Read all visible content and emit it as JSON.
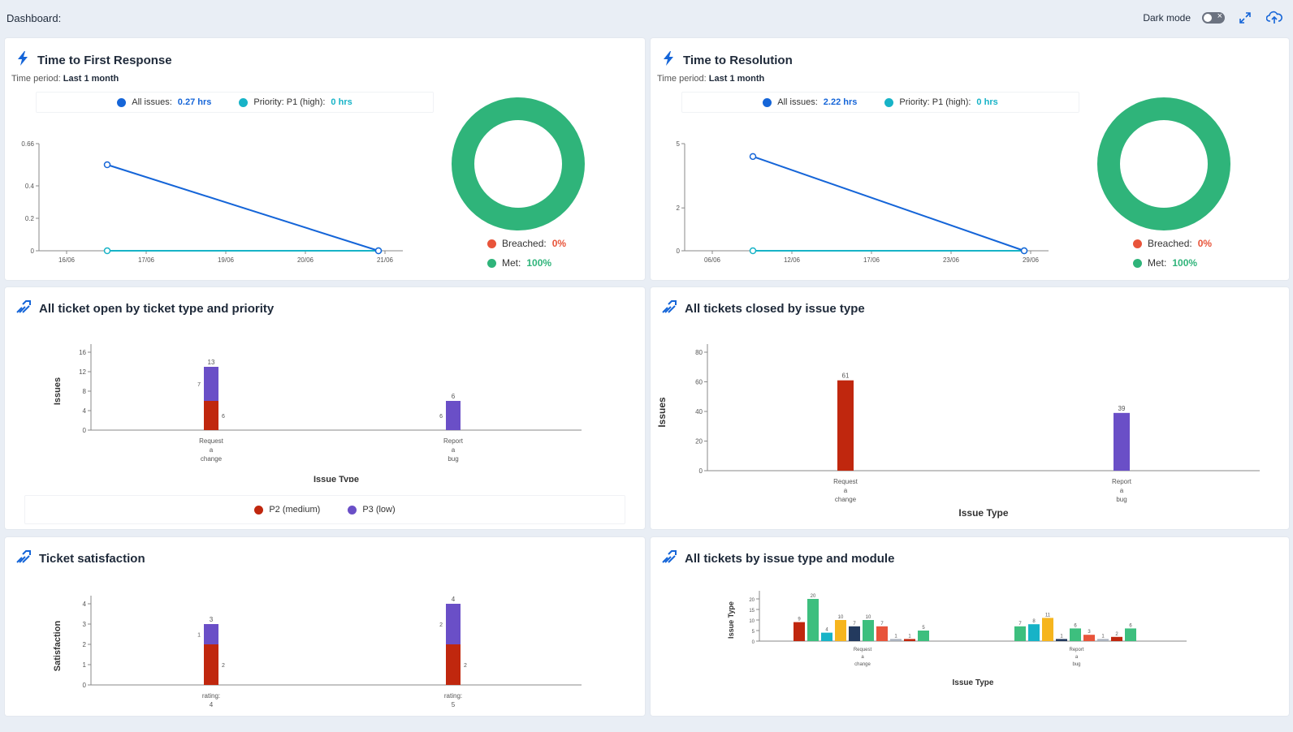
{
  "header": {
    "title": "Dashboard:",
    "dark_mode_label": "Dark mode",
    "icons": [
      "toggle-icon",
      "expand-icon",
      "cloud-upload-icon"
    ]
  },
  "colors": {
    "blue": "#1565d8",
    "teal": "#17b3c7",
    "green": "#2fb47a",
    "red_orange": "#e8543a",
    "dark_red": "#c0270e",
    "purple": "#6a4fc7"
  },
  "panels": {
    "first_response": {
      "title": "Time to First Response",
      "period_label": "Time period:",
      "period_value": "Last 1 month",
      "legend_all_label": "All issues:",
      "legend_all_value": "0.27 hrs",
      "legend_p1_label": "Priority: P1 (high):",
      "legend_p1_value": "0 hrs",
      "breached_label": "Breached:",
      "breached_value": "0%",
      "met_label": "Met:",
      "met_value": "100%"
    },
    "resolution": {
      "title": "Time to Resolution",
      "period_label": "Time period:",
      "period_value": "Last 1 month",
      "legend_all_label": "All issues:",
      "legend_all_value": "2.22 hrs",
      "legend_p1_label": "Priority: P1 (high):",
      "legend_p1_value": "0 hrs",
      "breached_label": "Breached:",
      "breached_value": "0%",
      "met_label": "Met:",
      "met_value": "100%"
    },
    "open_by_type": {
      "title": "All ticket open by ticket type and priority",
      "legend_p2": "P2 (medium)",
      "legend_p3": "P3 (low)"
    },
    "closed_by_type": {
      "title": "All tickets closed by issue type"
    },
    "satisfaction": {
      "title": "Ticket satisfaction"
    },
    "by_module": {
      "title": "All tickets by issue type and module"
    }
  },
  "chart_data": [
    {
      "id": "first_response_line",
      "type": "line",
      "x_ticks": [
        "16/06",
        "17/06",
        "19/06",
        "20/06",
        "21/06"
      ],
      "y_ticks": [
        "0",
        "0.2",
        "0.4",
        "0.66"
      ],
      "ylim": [
        0,
        0.66
      ],
      "series": [
        {
          "name": "All issues",
          "x": [
            "16/06",
            "21/06"
          ],
          "values": [
            0.53,
            0
          ],
          "color": "#1565d8"
        },
        {
          "name": "Priority: P1 (high)",
          "x": [
            "16/06",
            "21/06"
          ],
          "values": [
            0,
            0
          ],
          "color": "#17b3c7"
        }
      ]
    },
    {
      "id": "first_response_donut",
      "type": "pie",
      "labels": [
        "Breached",
        "Met"
      ],
      "values": [
        0,
        100
      ],
      "colors": [
        "#e8543a",
        "#2fb47a"
      ]
    },
    {
      "id": "resolution_line",
      "type": "line",
      "x_ticks": [
        "06/06",
        "12/06",
        "17/06",
        "23/06",
        "29/06"
      ],
      "y_ticks": [
        "0",
        "2",
        "5"
      ],
      "ylim": [
        0,
        5
      ],
      "series": [
        {
          "name": "All issues",
          "x": [
            "06/06",
            "29/06"
          ],
          "values": [
            4.4,
            0
          ],
          "color": "#1565d8"
        },
        {
          "name": "Priority: P1 (high)",
          "x": [
            "06/06",
            "29/06"
          ],
          "values": [
            0,
            0
          ],
          "color": "#17b3c7"
        }
      ]
    },
    {
      "id": "resolution_donut",
      "type": "pie",
      "labels": [
        "Breached",
        "Met"
      ],
      "values": [
        0,
        100
      ],
      "colors": [
        "#e8543a",
        "#2fb47a"
      ]
    },
    {
      "id": "open_by_type",
      "type": "bar",
      "stacked": true,
      "categories": [
        [
          "Request",
          "a",
          "change"
        ],
        [
          "Report",
          "a",
          "bug"
        ]
      ],
      "xlabel": "Issue Type",
      "ylabel": "Issues",
      "ylim": [
        0,
        16
      ],
      "y_ticks": [
        0,
        4,
        8,
        12,
        16
      ],
      "series": [
        {
          "name": "P2 (medium)",
          "values": [
            6,
            0
          ],
          "color": "#c0270e"
        },
        {
          "name": "P3 (low)",
          "values": [
            7,
            6
          ],
          "color": "#6a4fc7"
        }
      ],
      "totals": [
        13,
        6
      ]
    },
    {
      "id": "closed_by_type",
      "type": "bar",
      "categories": [
        [
          "Request",
          "a",
          "change"
        ],
        [
          "Report",
          "a",
          "bug"
        ]
      ],
      "xlabel": "Issue Type",
      "ylabel": "Issues",
      "ylim": [
        0,
        80
      ],
      "y_ticks": [
        0,
        20,
        40,
        60,
        80
      ],
      "values": [
        61,
        39
      ],
      "colors": [
        "#c0270e",
        "#6a4fc7"
      ]
    },
    {
      "id": "satisfaction",
      "type": "bar",
      "stacked": true,
      "categories": [
        [
          "rating:",
          "4"
        ],
        [
          "rating:",
          "5"
        ]
      ],
      "ylabel": "Satisfaction",
      "ylim": [
        0,
        4
      ],
      "y_ticks": [
        0,
        1,
        2,
        3,
        4
      ],
      "series": [
        {
          "values": [
            2,
            2
          ],
          "color": "#c0270e"
        },
        {
          "values": [
            1,
            2
          ],
          "color": "#6a4fc7"
        }
      ],
      "totals": [
        3,
        4
      ]
    },
    {
      "id": "by_module",
      "type": "bar",
      "categories": [
        [
          "Request",
          "a",
          "change"
        ],
        [
          "Report",
          "a",
          "bug"
        ]
      ],
      "xlabel": "Issue Type",
      "ylabel": "Issue Type",
      "ylim": [
        0,
        20
      ],
      "y_ticks": [
        0,
        5,
        10,
        15,
        20
      ],
      "groups": [
        {
          "values": [
            9,
            20,
            4,
            10,
            7,
            10,
            7,
            1,
            1,
            5
          ],
          "colors": [
            "#c0270e",
            "#3dbf7e",
            "#17b3c7",
            "#f6b51e",
            "#233a5e",
            "#3dbf7e",
            "#e8543a",
            "#aab2bd",
            "#c0270e",
            "#3dbf7e"
          ]
        },
        {
          "values": [
            7,
            8,
            11,
            1,
            6,
            3,
            1,
            2,
            6
          ],
          "colors": [
            "#3dbf7e",
            "#17b3c7",
            "#f6b51e",
            "#233a5e",
            "#3dbf7e",
            "#e8543a",
            "#aab2bd",
            "#c0270e",
            "#3dbf7e"
          ]
        }
      ]
    }
  ]
}
